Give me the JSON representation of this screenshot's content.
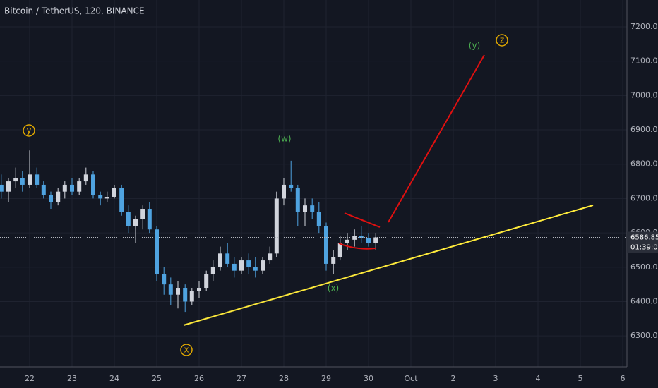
{
  "header": {
    "title": "Bitcoin / TetherUS, 120, BINANCE"
  },
  "chart_data": {
    "type": "candlestick",
    "x": [
      21.33,
      21.5,
      21.67,
      21.83,
      22.0,
      22.17,
      22.33,
      22.5,
      22.67,
      22.83,
      23.0,
      23.17,
      23.33,
      23.5,
      23.67,
      23.83,
      24.0,
      24.17,
      24.33,
      24.5,
      24.67,
      24.83,
      25.0,
      25.17,
      25.33,
      25.5,
      25.67,
      25.83,
      26.0,
      26.17,
      26.33,
      26.5,
      26.67,
      26.83,
      27.0,
      27.17,
      27.33,
      27.5,
      27.67,
      27.83,
      28.0,
      28.17,
      28.33,
      28.5,
      28.67,
      28.83,
      29.0,
      29.17,
      29.33,
      29.5,
      29.67,
      29.83,
      30.0,
      30.17
    ],
    "open": [
      6740,
      6720,
      6750,
      6760,
      6740,
      6770,
      6740,
      6710,
      6690,
      6720,
      6740,
      6720,
      6750,
      6770,
      6710,
      6700,
      6705,
      6730,
      6660,
      6620,
      6640,
      6670,
      6610,
      6480,
      6450,
      6420,
      6440,
      6400,
      6430,
      6440,
      6480,
      6500,
      6540,
      6510,
      6490,
      6520,
      6500,
      6490,
      6520,
      6540,
      6700,
      6740,
      6730,
      6660,
      6680,
      6660,
      6620,
      6510,
      6530,
      6570,
      6580,
      6590,
      6585,
      6570
    ],
    "high": [
      6770,
      6760,
      6790,
      6780,
      6840,
      6790,
      6750,
      6720,
      6730,
      6750,
      6760,
      6760,
      6790,
      6780,
      6720,
      6720,
      6740,
      6740,
      6680,
      6650,
      6680,
      6690,
      6620,
      6500,
      6470,
      6460,
      6450,
      6440,
      6460,
      6490,
      6520,
      6560,
      6570,
      6530,
      6530,
      6540,
      6530,
      6530,
      6560,
      6720,
      6760,
      6810,
      6740,
      6700,
      6700,
      6690,
      6630,
      6550,
      6590,
      6600,
      6610,
      6620,
      6600,
      6600
    ],
    "low": [
      6700,
      6690,
      6730,
      6720,
      6730,
      6730,
      6700,
      6670,
      6680,
      6700,
      6710,
      6710,
      6740,
      6700,
      6680,
      6690,
      6700,
      6650,
      6600,
      6570,
      6610,
      6600,
      6460,
      6420,
      6390,
      6380,
      6370,
      6390,
      6410,
      6430,
      6460,
      6490,
      6500,
      6470,
      6480,
      6480,
      6470,
      6480,
      6510,
      6530,
      6680,
      6720,
      6620,
      6620,
      6640,
      6600,
      6490,
      6480,
      6520,
      6550,
      6560,
      6570,
      6560,
      6550
    ],
    "close": [
      6720,
      6750,
      6760,
      6740,
      6770,
      6740,
      6710,
      6690,
      6720,
      6740,
      6720,
      6750,
      6770,
      6710,
      6700,
      6705,
      6730,
      6660,
      6620,
      6640,
      6670,
      6610,
      6480,
      6450,
      6420,
      6440,
      6400,
      6430,
      6440,
      6480,
      6500,
      6540,
      6510,
      6490,
      6520,
      6500,
      6490,
      6520,
      6540,
      6700,
      6740,
      6730,
      6660,
      6680,
      6660,
      6620,
      6510,
      6530,
      6570,
      6580,
      6590,
      6585,
      6570,
      6586.85
    ],
    "up_color": "#d1d4dc",
    "down_color": "#4fa3e0",
    "xlim": [
      21.3,
      36.1
    ],
    "xticks": [
      22,
      23,
      24,
      25,
      26,
      27,
      28,
      29,
      30,
      {
        "value": 31,
        "label": "Oct"
      },
      {
        "value": 32,
        "label": "2"
      },
      {
        "value": 33,
        "label": "3"
      },
      {
        "value": 34,
        "label": "4"
      },
      {
        "value": 35,
        "label": "5"
      },
      {
        "value": 36,
        "label": "6"
      }
    ],
    "ylim": [
      6210,
      7278
    ],
    "yticks": [
      {
        "value": 6300,
        "label": "6300.00"
      },
      {
        "value": 6400,
        "label": "6400.00"
      },
      {
        "value": 6500,
        "label": "6500.00"
      },
      {
        "value": 6600,
        "label": "6600.00"
      },
      {
        "value": 6700,
        "label": "6700.00"
      },
      {
        "value": 6800,
        "label": "6800.00"
      },
      {
        "value": 6900,
        "label": "6900.00"
      },
      {
        "value": 7000,
        "label": "7000.00"
      },
      {
        "value": 7100,
        "label": "7100.00"
      },
      {
        "value": 7200,
        "label": "7200.00"
      }
    ],
    "grid": true,
    "last_price": 6586.85,
    "countdown": "01:39:09",
    "annotations": [
      "y",
      "(w)",
      "(x)",
      "(y)",
      "z",
      "x"
    ]
  }
}
